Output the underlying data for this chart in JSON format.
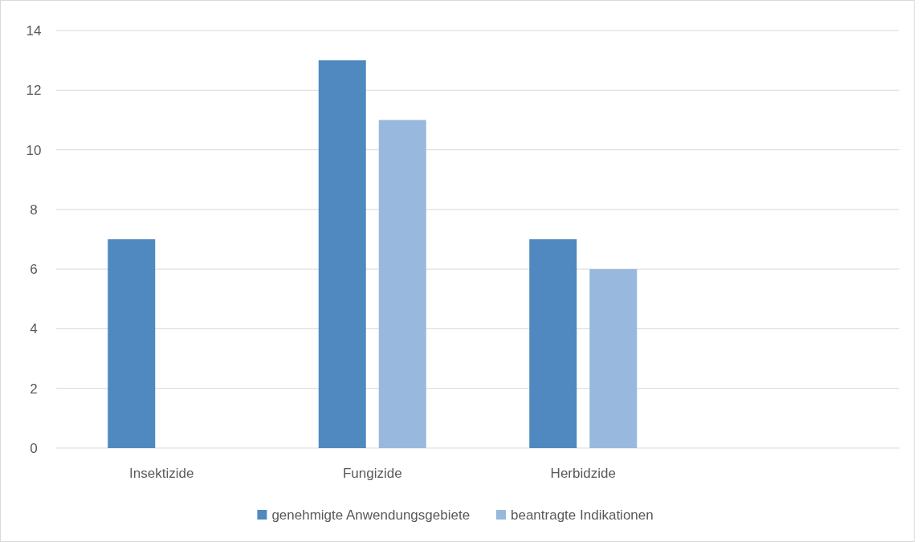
{
  "chart_data": {
    "type": "bar",
    "categories": [
      "Insektizide",
      "Fungizide",
      "Herbidzide",
      null
    ],
    "series": [
      {
        "name": "genehmigte Anwendungsgebiete",
        "color": "#4f89bf",
        "values": [
          7,
          13,
          7,
          null
        ]
      },
      {
        "name": "beantragte Indikationen",
        "color": "#98b8de",
        "values": [
          null,
          11,
          6,
          null
        ]
      }
    ],
    "ylim": [
      0,
      14
    ],
    "yticks": [
      0,
      2,
      4,
      6,
      8,
      10,
      12,
      14
    ],
    "grid": "y",
    "legend": "bottom"
  }
}
